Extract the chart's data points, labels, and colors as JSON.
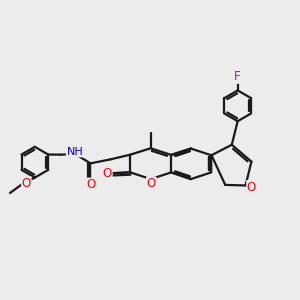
{
  "bg_color": "#ececec",
  "bond_color": "#1a1a1a",
  "bond_width": 1.6,
  "figsize": [
    3.0,
    3.0
  ],
  "dpi": 100,
  "xlim": [
    0,
    9
  ],
  "ylim": [
    1.5,
    9.5
  ]
}
